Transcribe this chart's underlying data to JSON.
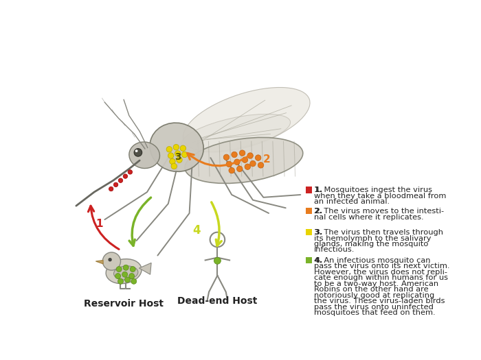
{
  "background_color": "#ffffff",
  "legend_items": [
    {
      "number": "1.",
      "color": "#cc2222",
      "lines": [
        "Mosquitoes ingest the virus",
        "when they take a bloodmeal from",
        "an infected animal."
      ]
    },
    {
      "number": "2.",
      "color": "#e87c1e",
      "lines": [
        "The virus moves to the intesti-",
        "nal cells where it replicates."
      ]
    },
    {
      "number": "3.",
      "color": "#e8d400",
      "lines": [
        "The virus then travels through",
        "its hemolymph to the salivary",
        "glands, making the mosquito",
        "infectious."
      ]
    },
    {
      "number": "4.",
      "color": "#7ab329",
      "lines": [
        "An infectious mosquito can",
        "pass the virus onto its next victim.",
        "However, the virus does not repli-",
        "cate enough within humans for us",
        "to be a two-way host. American",
        "Robins on the other hand are",
        "notoriously good at replicating",
        "the virus. These virus-laden birds",
        "pass the virus onto uninfected",
        "mosquitoes that feed on them."
      ]
    }
  ],
  "reservoir_host_label": "Reservoir Host",
  "dead_end_host_label": "Dead-end Host",
  "dot_color_orange": "#e87c1e",
  "dot_color_yellow": "#e8d400",
  "dot_color_green": "#7ab329",
  "dot_color_red": "#cc2222",
  "arrow_color_red": "#cc2222",
  "arrow_color_orange": "#e87c1e",
  "arrow_color_green": "#7ab329",
  "arrow_color_yellow_green": "#c8d820"
}
